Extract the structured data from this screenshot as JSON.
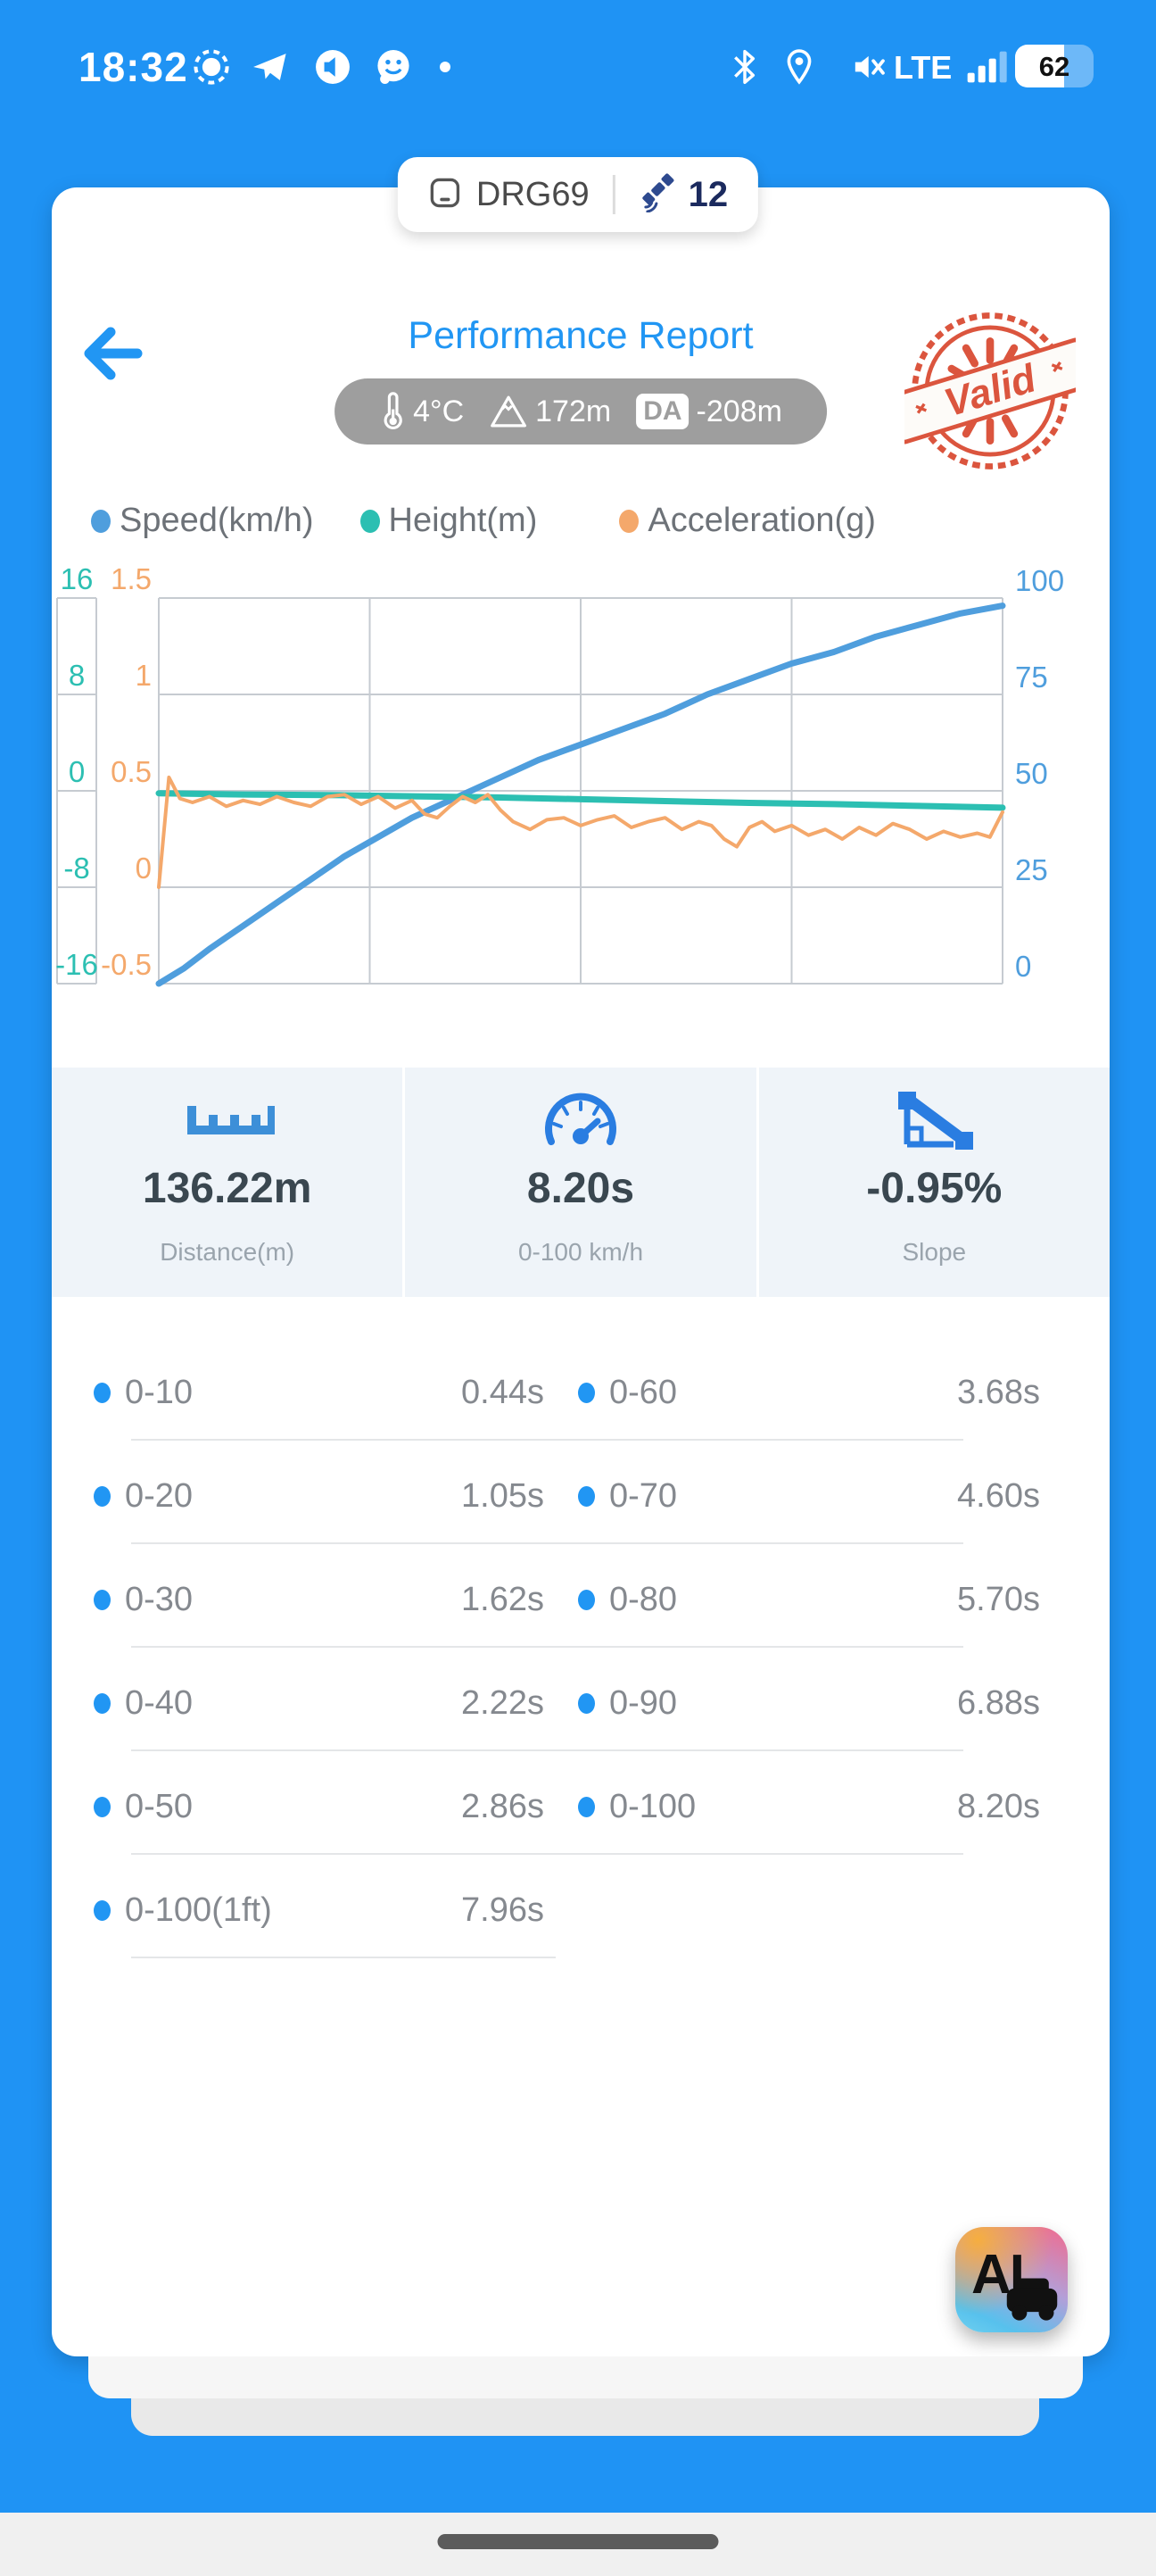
{
  "status_bar": {
    "time": "18:32",
    "network": "LTE",
    "battery": "62"
  },
  "device_pill": {
    "device_name": "DRG69",
    "satellite_count": "12"
  },
  "header": {
    "title": "Performance Report",
    "env": {
      "temperature": "4°C",
      "altitude": "172m",
      "da_label": "DA",
      "density_altitude": "-208m"
    },
    "stamp_text": "Valid"
  },
  "legend": {
    "items": [
      {
        "label": "Speed(km/h)",
        "color": "#4f9edd"
      },
      {
        "label": "Height(m)",
        "color": "#2cbfb2"
      },
      {
        "label": "Acceleration(g)",
        "color": "#f4a86b"
      }
    ]
  },
  "chart_data": {
    "type": "line",
    "title": "",
    "x_axis": {
      "label": "",
      "range": [
        0,
        1
      ],
      "tick_labels_visible": false
    },
    "grid": {
      "h_divisions": 4,
      "v_divisions": 4,
      "color": "#c6cbd1"
    },
    "axes": {
      "height": {
        "label": "Height(m)",
        "ticks": [
          16,
          8,
          0,
          -8,
          -16
        ],
        "range": [
          -16,
          16
        ],
        "color": "#2cbfb2",
        "position": "outer-left"
      },
      "acceleration": {
        "label": "Acceleration(g)",
        "ticks": [
          1.5,
          1,
          0.5,
          0,
          -0.5
        ],
        "range": [
          -0.5,
          1.5
        ],
        "color": "#f4a86b",
        "position": "left"
      },
      "speed": {
        "label": "Speed(km/h)",
        "ticks": [
          100,
          75,
          50,
          25,
          0
        ],
        "range": [
          0,
          100
        ],
        "color": "#4f9edd",
        "position": "right"
      }
    },
    "series": [
      {
        "name": "Speed(km/h)",
        "axis": "speed",
        "color": "#4f9edd",
        "width": 7,
        "x": [
          0,
          0.03,
          0.06,
          0.1,
          0.14,
          0.18,
          0.22,
          0.26,
          0.3,
          0.35,
          0.4,
          0.45,
          0.5,
          0.55,
          0.6,
          0.65,
          0.7,
          0.75,
          0.8,
          0.85,
          0.9,
          0.95,
          1.0
        ],
        "y": [
          0,
          4,
          9,
          15,
          21,
          27,
          33,
          38,
          43,
          48,
          53,
          58,
          62,
          66,
          70,
          75,
          79,
          83,
          86,
          90,
          93,
          96,
          98
        ]
      },
      {
        "name": "Height(m)",
        "axis": "height",
        "color": "#2cbfb2",
        "width": 7,
        "x": [
          0,
          0.1,
          0.2,
          0.3,
          0.4,
          0.5,
          0.6,
          0.7,
          0.8,
          0.9,
          1.0
        ],
        "y": [
          -0.2,
          -0.3,
          -0.35,
          -0.45,
          -0.55,
          -0.7,
          -0.85,
          -1.0,
          -1.1,
          -1.25,
          -1.4
        ]
      },
      {
        "name": "Acceleration(g)",
        "axis": "acceleration",
        "color": "#f4a86b",
        "width": 4,
        "x": [
          0,
          0.012,
          0.025,
          0.04,
          0.06,
          0.08,
          0.1,
          0.12,
          0.14,
          0.16,
          0.18,
          0.2,
          0.22,
          0.24,
          0.26,
          0.28,
          0.3,
          0.315,
          0.33,
          0.345,
          0.36,
          0.375,
          0.39,
          0.405,
          0.42,
          0.44,
          0.46,
          0.48,
          0.5,
          0.52,
          0.54,
          0.56,
          0.58,
          0.6,
          0.62,
          0.64,
          0.655,
          0.67,
          0.685,
          0.7,
          0.715,
          0.73,
          0.75,
          0.77,
          0.79,
          0.81,
          0.83,
          0.85,
          0.87,
          0.89,
          0.91,
          0.93,
          0.95,
          0.97,
          0.985,
          1.0
        ],
        "y": [
          0,
          0.57,
          0.46,
          0.44,
          0.47,
          0.42,
          0.45,
          0.43,
          0.47,
          0.44,
          0.42,
          0.47,
          0.48,
          0.43,
          0.47,
          0.41,
          0.45,
          0.38,
          0.36,
          0.42,
          0.47,
          0.44,
          0.48,
          0.4,
          0.34,
          0.3,
          0.35,
          0.36,
          0.32,
          0.35,
          0.37,
          0.31,
          0.34,
          0.36,
          0.3,
          0.34,
          0.32,
          0.25,
          0.21,
          0.31,
          0.34,
          0.29,
          0.32,
          0.27,
          0.3,
          0.25,
          0.31,
          0.27,
          0.33,
          0.3,
          0.25,
          0.29,
          0.26,
          0.28,
          0.26,
          0.39
        ]
      }
    ]
  },
  "stats": {
    "cards": [
      {
        "icon": "ruler-icon",
        "value": "136.22m",
        "label": "Distance(m)"
      },
      {
        "icon": "speedometer-icon",
        "value": "8.20s",
        "label": "0-100 km/h"
      },
      {
        "icon": "slope-icon",
        "value": "-0.95%",
        "label": "Slope"
      }
    ]
  },
  "times": {
    "rows": [
      {
        "left": {
          "label": "0-10",
          "value": "0.44s"
        },
        "right": {
          "label": "0-60",
          "value": "3.68s"
        }
      },
      {
        "left": {
          "label": "0-20",
          "value": "1.05s"
        },
        "right": {
          "label": "0-70",
          "value": "4.60s"
        }
      },
      {
        "left": {
          "label": "0-30",
          "value": "1.62s"
        },
        "right": {
          "label": "0-80",
          "value": "5.70s"
        }
      },
      {
        "left": {
          "label": "0-40",
          "value": "2.22s"
        },
        "right": {
          "label": "0-90",
          "value": "6.88s"
        }
      },
      {
        "left": {
          "label": "0-50",
          "value": "2.86s"
        },
        "right": {
          "label": "0-100",
          "value": "8.20s"
        }
      },
      {
        "left": {
          "label": "0-100(1ft)",
          "value": "7.96s"
        },
        "right": null
      }
    ]
  },
  "ai_button": {
    "label": "AI"
  },
  "colors": {
    "background": "#1f93f4",
    "accent": "#2196f3",
    "stamp": "#d9472e",
    "stats_bg": "#eff4f9"
  }
}
